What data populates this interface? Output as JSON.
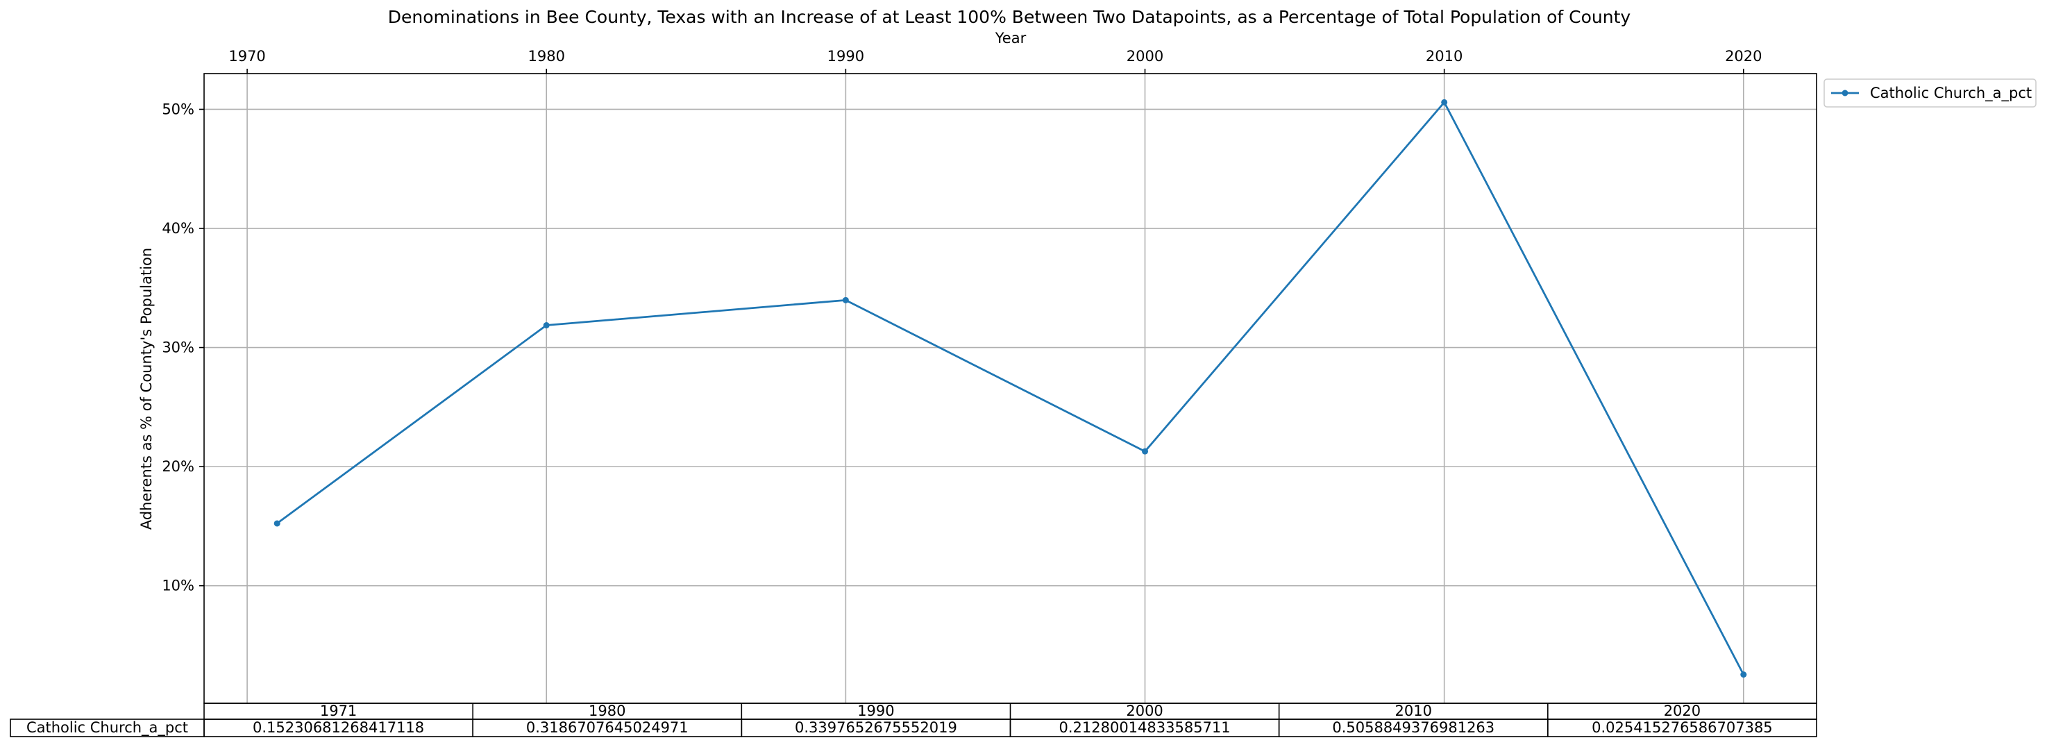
{
  "chart_data": {
    "type": "line",
    "title": "Denominations in Bee County, Texas with an Increase of at Least 100% Between Two Datapoints, as a Percentage of Total Population of County",
    "xlabel": "Year",
    "ylabel": "Adherents as % of County's Population",
    "x_ticks": [
      "1970",
      "1980",
      "1990",
      "2000",
      "2010",
      "2020"
    ],
    "x_tick_values": [
      1970,
      1980,
      1990,
      2000,
      2010,
      2020
    ],
    "xlim": [
      1968.56,
      2022.44
    ],
    "y_ticks": [
      "10%",
      "20%",
      "30%",
      "40%",
      "50%"
    ],
    "y_tick_values": [
      0.1,
      0.2,
      0.3,
      0.4,
      0.5
    ],
    "ylim": [
      0.0013,
      0.53
    ],
    "grid": true,
    "legend_position": "outside-top-right",
    "x_axis_position": "top",
    "color": "#1f77b4",
    "series": [
      {
        "name": "Catholic Church_a_pct",
        "x": [
          1971,
          1980,
          1990,
          2000,
          2010,
          2020
        ],
        "values": [
          0.15230681268417118,
          0.3186707645024971,
          0.3397652675552019,
          0.21280014833585711,
          0.5058849376981263,
          0.025415276586707385
        ]
      }
    ],
    "table": {
      "columns": [
        "1971",
        "1980",
        "1990",
        "2000",
        "2010",
        "2020"
      ],
      "rows": [
        {
          "label": "Catholic Church_a_pct",
          "cells": [
            "0.15230681268417118",
            "0.3186707645024971",
            "0.3397652675552019",
            "0.21280014833585711",
            "0.5058849376981263",
            "0.025415276586707385"
          ]
        }
      ]
    }
  }
}
